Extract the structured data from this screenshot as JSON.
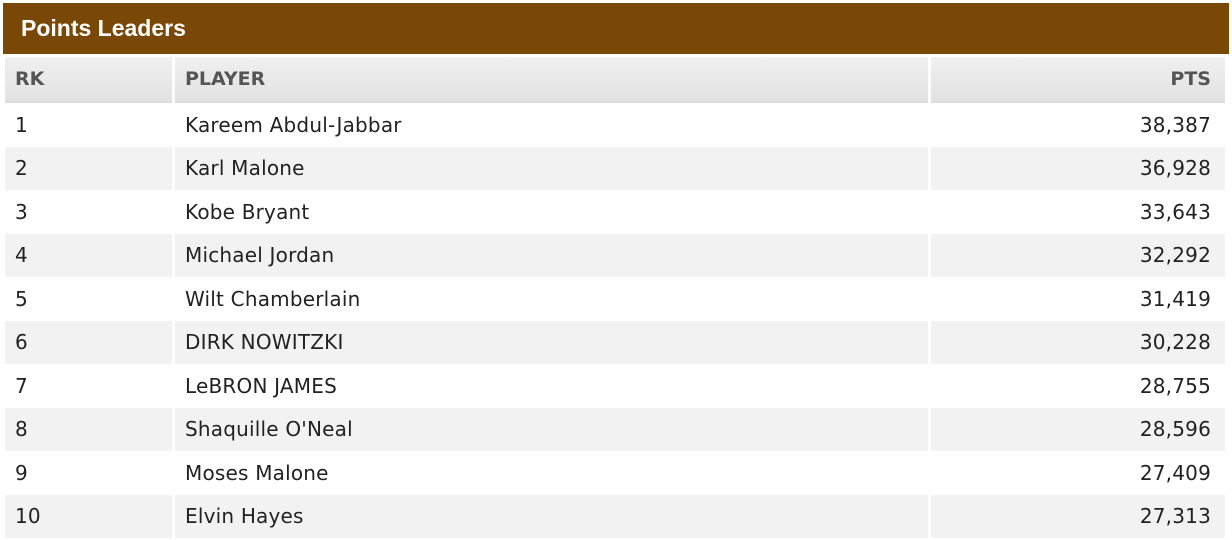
{
  "header": {
    "title": "Points Leaders"
  },
  "table": {
    "columns": [
      "RK",
      "PLAYER",
      "PTS"
    ],
    "rows": [
      [
        "1",
        "Kareem Abdul-Jabbar",
        "38,387"
      ],
      [
        "2",
        "Karl Malone",
        "36,928"
      ],
      [
        "3",
        "Kobe Bryant",
        "33,643"
      ],
      [
        "4",
        "Michael Jordan",
        "32,292"
      ],
      [
        "5",
        "Wilt Chamberlain",
        "31,419"
      ],
      [
        "6",
        "DIRK NOWITZKI",
        "30,228"
      ],
      [
        "7",
        "LeBRON JAMES",
        "28,755"
      ],
      [
        "8",
        "Shaquille O'Neal",
        "28,596"
      ],
      [
        "9",
        "Moses Malone",
        "27,409"
      ],
      [
        "10",
        "Elvin Hayes",
        "27,313"
      ]
    ]
  }
}
